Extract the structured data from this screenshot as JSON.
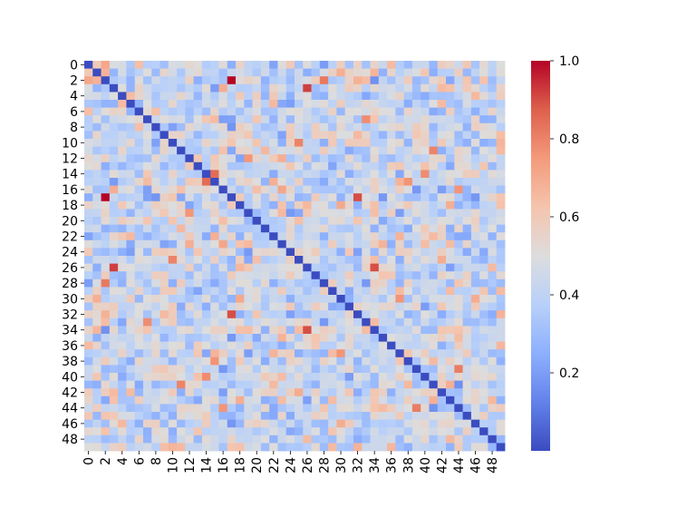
{
  "chart_data": {
    "type": "heatmap",
    "n": 50,
    "x_tick_labels": [
      "0",
      "2",
      "4",
      "6",
      "8",
      "10",
      "12",
      "14",
      "16",
      "18",
      "20",
      "22",
      "24",
      "26",
      "28",
      "30",
      "32",
      "34",
      "36",
      "38",
      "40",
      "42",
      "44",
      "46",
      "48"
    ],
    "y_tick_labels": [
      "0",
      "2",
      "4",
      "6",
      "8",
      "10",
      "12",
      "14",
      "16",
      "18",
      "20",
      "22",
      "24",
      "26",
      "28",
      "30",
      "32",
      "34",
      "36",
      "38",
      "40",
      "42",
      "44",
      "46",
      "48"
    ],
    "colormap": "coolwarm",
    "vmin": 0.0,
    "vmax": 1.0,
    "colorbar_ticks": [
      "0.2",
      "0.4",
      "0.6",
      "0.8",
      "1.0"
    ],
    "colorbar_tick_values": [
      0.2,
      0.4,
      0.6,
      0.8,
      1.0
    ],
    "diagonal_value": 0.0,
    "values_note_seed": 20240601,
    "highlights": [
      {
        "row": 2,
        "col": 17,
        "value": 1.0
      },
      {
        "row": 17,
        "col": 2,
        "value": 1.0
      },
      {
        "row": 26,
        "col": 3,
        "value": 0.92
      },
      {
        "row": 3,
        "col": 26,
        "value": 0.92
      },
      {
        "row": 26,
        "col": 34,
        "value": 0.9
      },
      {
        "row": 34,
        "col": 26,
        "value": 0.9
      },
      {
        "row": 32,
        "col": 17,
        "value": 0.9
      },
      {
        "row": 17,
        "col": 32,
        "value": 0.9
      },
      {
        "row": 15,
        "col": 14,
        "value": 0.85
      },
      {
        "row": 14,
        "col": 15,
        "value": 0.85
      },
      {
        "row": 2,
        "col": 28,
        "value": 0.82
      },
      {
        "row": 28,
        "col": 2,
        "value": 0.82
      },
      {
        "row": 7,
        "col": 33,
        "value": 0.78
      },
      {
        "row": 33,
        "col": 7,
        "value": 0.78
      },
      {
        "row": 16,
        "col": 44,
        "value": 0.76
      },
      {
        "row": 44,
        "col": 16,
        "value": 0.76
      },
      {
        "row": 40,
        "col": 14,
        "value": 0.78
      },
      {
        "row": 14,
        "col": 40,
        "value": 0.78
      }
    ]
  }
}
